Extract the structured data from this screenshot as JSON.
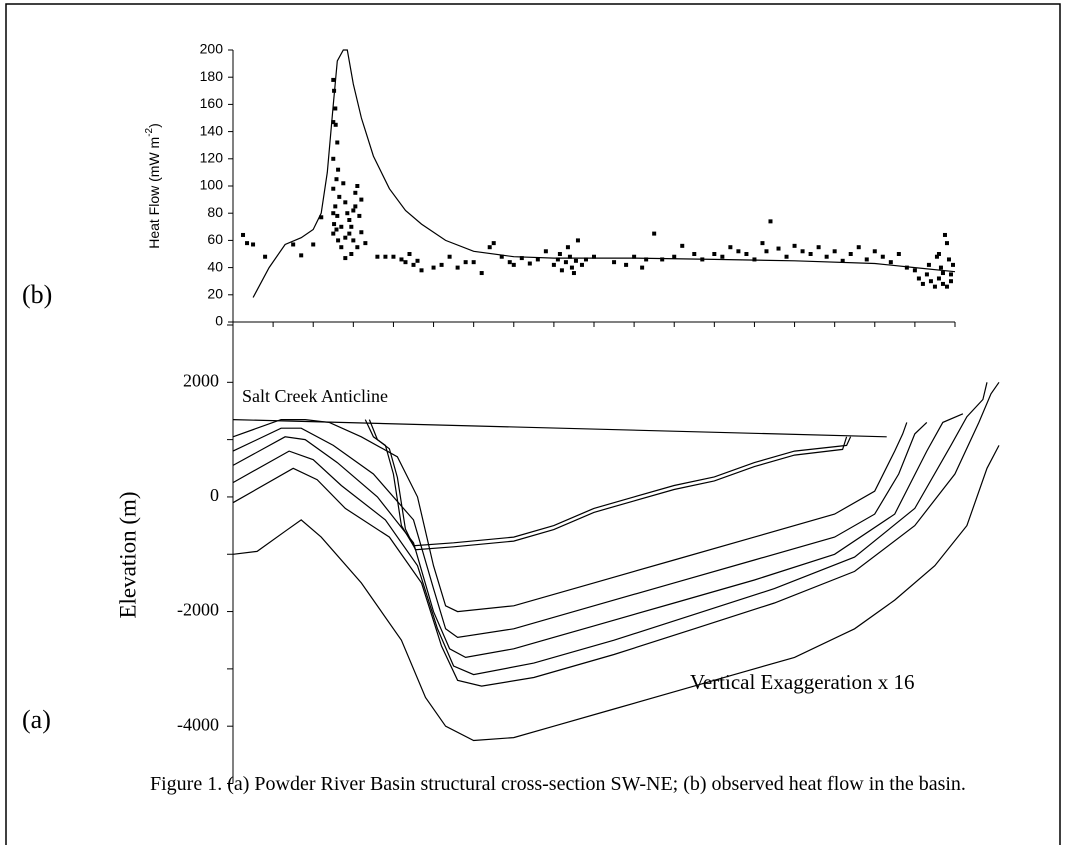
{
  "chart_data": [
    {
      "type": "scatter-line",
      "label": "(b)",
      "y_label": [
        "Heat Flow (mW m",
        "-2",
        ")"
      ],
      "xlim": [
        0,
        18
      ],
      "xticks": [
        0,
        1,
        2,
        3,
        4,
        5,
        6,
        7,
        8,
        9,
        10,
        11,
        12,
        13,
        14,
        15,
        16,
        17,
        18
      ],
      "ylim": [
        0,
        200
      ],
      "yticks": [
        0,
        20,
        40,
        60,
        80,
        100,
        120,
        140,
        160,
        180,
        200
      ],
      "color": "#000000",
      "points": {
        "x": [
          0.25,
          0.35,
          0.5,
          0.8,
          1.5,
          1.7,
          2.0,
          2.2,
          2.5,
          2.52,
          2.55,
          2.5,
          2.56,
          2.6,
          2.5,
          2.62,
          2.58,
          2.5,
          2.65,
          2.55,
          2.5,
          2.6,
          2.52,
          2.58,
          2.5,
          2.62,
          2.7,
          2.8,
          2.75,
          2.8,
          2.85,
          2.9,
          2.95,
          3.0,
          3.05,
          3.1,
          3.05,
          3.15,
          2.9,
          3.0,
          3.1,
          3.2,
          2.7,
          2.8,
          3.2,
          2.95,
          3.3,
          3.6,
          3.8,
          4.0,
          4.2,
          4.3,
          4.4,
          4.5,
          4.6,
          4.7,
          5.0,
          5.2,
          5.4,
          5.6,
          5.8,
          6.0,
          6.2,
          6.4,
          6.5,
          6.7,
          6.9,
          7.0,
          7.2,
          7.4,
          7.6,
          7.8,
          8.0,
          8.1,
          8.15,
          8.2,
          8.3,
          8.35,
          8.4,
          8.45,
          8.5,
          8.55,
          8.6,
          8.7,
          8.8,
          9.0,
          9.5,
          9.8,
          10.0,
          10.2,
          10.3,
          10.5,
          10.7,
          11.0,
          11.2,
          11.5,
          11.7,
          12.0,
          12.2,
          12.4,
          12.6,
          12.8,
          13.0,
          13.2,
          13.3,
          13.4,
          13.6,
          13.8,
          14.0,
          14.2,
          14.4,
          14.6,
          14.8,
          15.0,
          15.2,
          15.4,
          15.6,
          15.8,
          16.0,
          16.2,
          16.4,
          16.6,
          16.8,
          17.0,
          17.1,
          17.2,
          17.3,
          17.35,
          17.4,
          17.5,
          17.55,
          17.6,
          17.65,
          17.7,
          17.7,
          17.75,
          17.8,
          17.8,
          17.85,
          17.9,
          17.9,
          17.95,
          17.6
        ],
        "values": [
          64,
          58,
          57,
          48,
          57,
          49,
          57,
          77,
          178,
          170,
          157,
          147,
          145,
          132,
          120,
          112,
          105,
          98,
          92,
          85,
          80,
          78,
          72,
          68,
          65,
          60,
          55,
          47,
          102,
          88,
          80,
          75,
          70,
          82,
          95,
          100,
          85,
          78,
          65,
          60,
          55,
          66,
          70,
          62,
          90,
          50,
          58,
          48,
          48,
          48,
          46,
          44,
          50,
          42,
          45,
          38,
          40,
          42,
          48,
          40,
          44,
          44,
          36,
          55,
          58,
          48,
          44,
          42,
          47,
          43,
          46,
          52,
          42,
          46,
          50,
          38,
          44,
          55,
          48,
          40,
          36,
          45,
          60,
          42,
          46,
          48,
          44,
          42,
          48,
          40,
          46,
          65,
          46,
          48,
          56,
          50,
          46,
          50,
          48,
          55,
          52,
          50,
          46,
          58,
          52,
          74,
          54,
          48,
          56,
          52,
          50,
          55,
          48,
          52,
          45,
          50,
          55,
          46,
          52,
          48,
          44,
          50,
          40,
          38,
          32,
          28,
          35,
          42,
          30,
          26,
          48,
          32,
          40,
          28,
          36,
          64,
          26,
          58,
          46,
          35,
          30,
          42,
          50
        ]
      },
      "curve": {
        "x": [
          0.5,
          0.9,
          1.3,
          1.7,
          2.0,
          2.2,
          2.35,
          2.5,
          2.6,
          2.75,
          2.85,
          3.0,
          3.2,
          3.5,
          3.9,
          4.3,
          4.7,
          5.3,
          6.0,
          7.0,
          8.0,
          10.0,
          12.0,
          14.0,
          16.0,
          17.0,
          18.0
        ],
        "values": [
          18,
          40,
          57,
          62,
          68,
          80,
          110,
          160,
          192,
          200,
          200,
          175,
          150,
          122,
          98,
          82,
          72,
          60,
          52,
          48,
          47,
          47,
          46,
          45,
          43,
          40,
          37
        ]
      }
    },
    {
      "type": "line",
      "label": "(a)",
      "y_label": "Elevation (m)",
      "annotations": [
        "Salt Creek Anticline",
        "Vertical Exaggeration x 16"
      ],
      "xlim": [
        0,
        19.2
      ],
      "ylim": [
        -5000,
        3000
      ],
      "yticks": [
        -4000,
        -2000,
        0,
        2000
      ],
      "yminorticks": [
        -5000,
        -3000,
        -1000,
        1000,
        3000
      ],
      "color": "#000000",
      "series": [
        {
          "x": [
            0,
            16.3
          ],
          "values": [
            1350,
            1050
          ]
        },
        {
          "x": [
            3.3,
            3.5,
            3.8,
            4.0,
            4.2,
            4.5,
            5.5,
            7,
            8,
            9,
            10,
            11,
            12,
            13,
            14,
            15.3,
            15.4
          ],
          "values": [
            1350,
            1050,
            900,
            400,
            -500,
            -850,
            -800,
            -700,
            -500,
            -200,
            0,
            200,
            350,
            600,
            800,
            900,
            1050
          ]
        },
        {
          "x": [
            3.4,
            3.6,
            3.9,
            4.1,
            4.3,
            4.55,
            5.5,
            7,
            8,
            9,
            10,
            11,
            12,
            13,
            14,
            15.2,
            15.3
          ],
          "values": [
            1350,
            1000,
            840,
            340,
            -560,
            -920,
            -870,
            -770,
            -570,
            -270,
            -70,
            130,
            280,
            530,
            730,
            830,
            1050
          ]
        },
        {
          "x": [
            0,
            1.2,
            1.8,
            2.4,
            3.2,
            4.1,
            4.6,
            5,
            5.3,
            5.6,
            7,
            9,
            11,
            13,
            15,
            16,
            16.5,
            16.7,
            16.8
          ],
          "values": [
            1050,
            1350,
            1350,
            1300,
            1050,
            700,
            0,
            -1200,
            -1900,
            -2000,
            -1900,
            -1500,
            -1100,
            -700,
            -300,
            100,
            800,
            1100,
            1300
          ]
        },
        {
          "x": [
            0,
            1.2,
            1.7,
            2.5,
            3.5,
            4.5,
            5,
            5.3,
            5.6,
            7,
            9,
            11,
            13,
            15,
            16,
            16.6,
            17,
            17.3
          ],
          "values": [
            800,
            1200,
            1200,
            900,
            400,
            -400,
            -1600,
            -2300,
            -2450,
            -2300,
            -1900,
            -1500,
            -1100,
            -700,
            -300,
            400,
            1100,
            1300
          ]
        },
        {
          "x": [
            0,
            1.3,
            1.8,
            2.6,
            3.6,
            4.5,
            5,
            5.4,
            5.8,
            7,
            9,
            11,
            13,
            15,
            16.5,
            17.3,
            17.7,
            18.2
          ],
          "values": [
            550,
            1050,
            1000,
            600,
            0,
            -800,
            -2000,
            -2650,
            -2800,
            -2650,
            -2250,
            -1850,
            -1450,
            -1000,
            -300,
            800,
            1300,
            1450
          ]
        },
        {
          "x": [
            0,
            1.4,
            2,
            2.7,
            3.8,
            4.6,
            5.1,
            5.5,
            6,
            7.5,
            9.5,
            11.5,
            13.5,
            15.5,
            17,
            17.9,
            18.3,
            18.7,
            18.8
          ],
          "values": [
            250,
            800,
            650,
            200,
            -400,
            -1200,
            -2300,
            -2950,
            -3100,
            -2900,
            -2500,
            -2050,
            -1600,
            -1050,
            -200,
            900,
            1400,
            1700,
            2000
          ]
        },
        {
          "x": [
            0,
            1.5,
            2.1,
            2.8,
            3.9,
            4.7,
            5.2,
            5.6,
            6.2,
            7.5,
            9.5,
            11.5,
            13.5,
            15.5,
            17,
            18,
            18.6,
            18.9,
            19.1
          ],
          "values": [
            -100,
            500,
            300,
            -200,
            -700,
            -1500,
            -2600,
            -3200,
            -3300,
            -3150,
            -2750,
            -2300,
            -1850,
            -1300,
            -500,
            400,
            1300,
            1800,
            2000
          ]
        },
        {
          "x": [
            0,
            0.6,
            1.3,
            1.7,
            2.2,
            3.2,
            4.2,
            4.8,
            5.3,
            6,
            7,
            8,
            9.5,
            11,
            12.5,
            14,
            15.5,
            16.5,
            17.5,
            18.3,
            18.8,
            19.1
          ],
          "values": [
            -1000,
            -950,
            -600,
            -400,
            -700,
            -1500,
            -2500,
            -3500,
            -4000,
            -4250,
            -4200,
            -4000,
            -3700,
            -3400,
            -3100,
            -2800,
            -2300,
            -1800,
            -1200,
            -500,
            500,
            900
          ]
        }
      ]
    }
  ],
  "caption": "Figure 1. (a) Powder River Basin structural cross-section SW-NE; (b) observed heat flow in the basin."
}
